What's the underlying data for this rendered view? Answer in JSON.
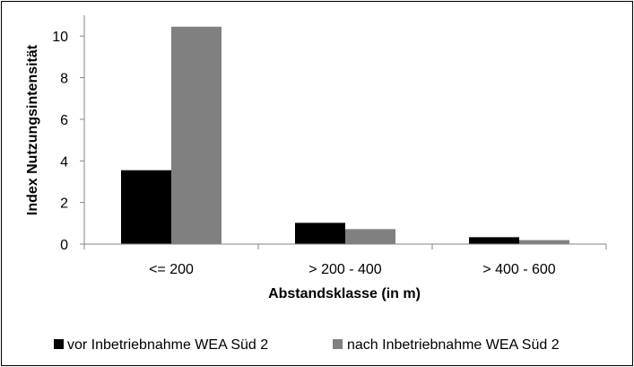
{
  "chart_data": {
    "type": "bar",
    "title": "",
    "xlabel": "Abstandsklasse (in m)",
    "ylabel": "Index Nutzungsintensität",
    "categories": [
      "<= 200",
      "> 200 - 400",
      "> 400 - 600"
    ],
    "series": [
      {
        "name": "vor Inbetriebnahme WEA Süd 2",
        "color": "#000000",
        "values": [
          3.55,
          1.02,
          0.33
        ]
      },
      {
        "name": "nach Inbetriebnahme WEA Süd 2",
        "color": "#808080",
        "values": [
          10.45,
          0.72,
          0.19
        ]
      }
    ],
    "ylim": [
      0,
      11
    ],
    "yticks": [
      0,
      2,
      4,
      6,
      8,
      10
    ],
    "grid": false,
    "legend": "bottom"
  }
}
